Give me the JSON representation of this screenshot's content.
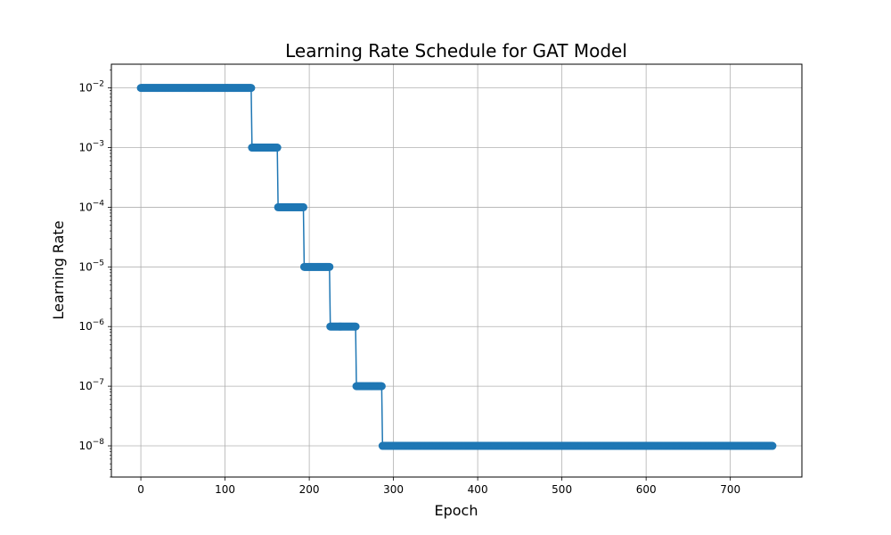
{
  "chart_data": {
    "type": "line",
    "title": "Learning Rate Schedule for GAT Model",
    "xlabel": "Epoch",
    "ylabel": "Learning Rate",
    "y_scale": "log",
    "xlim": [
      -35,
      785
    ],
    "ylim": [
      3e-09,
      0.025
    ],
    "grid": true,
    "marker": "circle",
    "colors": {
      "line": "#1f77b4",
      "marker": "#1f77b4",
      "grid": "#b0b0b0"
    },
    "x_ticks": [
      0,
      100,
      200,
      300,
      400,
      500,
      600,
      700
    ],
    "x_tick_labels": [
      "0",
      "100",
      "200",
      "300",
      "400",
      "500",
      "600",
      "700"
    ],
    "y_ticks": [
      1e-08,
      1e-07,
      1e-06,
      1e-05,
      0.0001,
      0.001,
      0.01
    ],
    "y_tick_labels": [
      {
        "base": "10",
        "exp": "−8"
      },
      {
        "base": "10",
        "exp": "−7"
      },
      {
        "base": "10",
        "exp": "−6"
      },
      {
        "base": "10",
        "exp": "−5"
      },
      {
        "base": "10",
        "exp": "−4"
      },
      {
        "base": "10",
        "exp": "−3"
      },
      {
        "base": "10",
        "exp": "−2"
      }
    ],
    "steps": [
      {
        "x_start": 0,
        "x_end": 131,
        "y": 0.01
      },
      {
        "x_start": 132,
        "x_end": 162,
        "y": 0.001
      },
      {
        "x_start": 163,
        "x_end": 193,
        "y": 0.0001
      },
      {
        "x_start": 194,
        "x_end": 224,
        "y": 1e-05
      },
      {
        "x_start": 225,
        "x_end": 255,
        "y": 1e-06
      },
      {
        "x_start": 256,
        "x_end": 286,
        "y": 1e-07
      },
      {
        "x_start": 287,
        "x_end": 750,
        "y": 1e-08
      }
    ]
  }
}
